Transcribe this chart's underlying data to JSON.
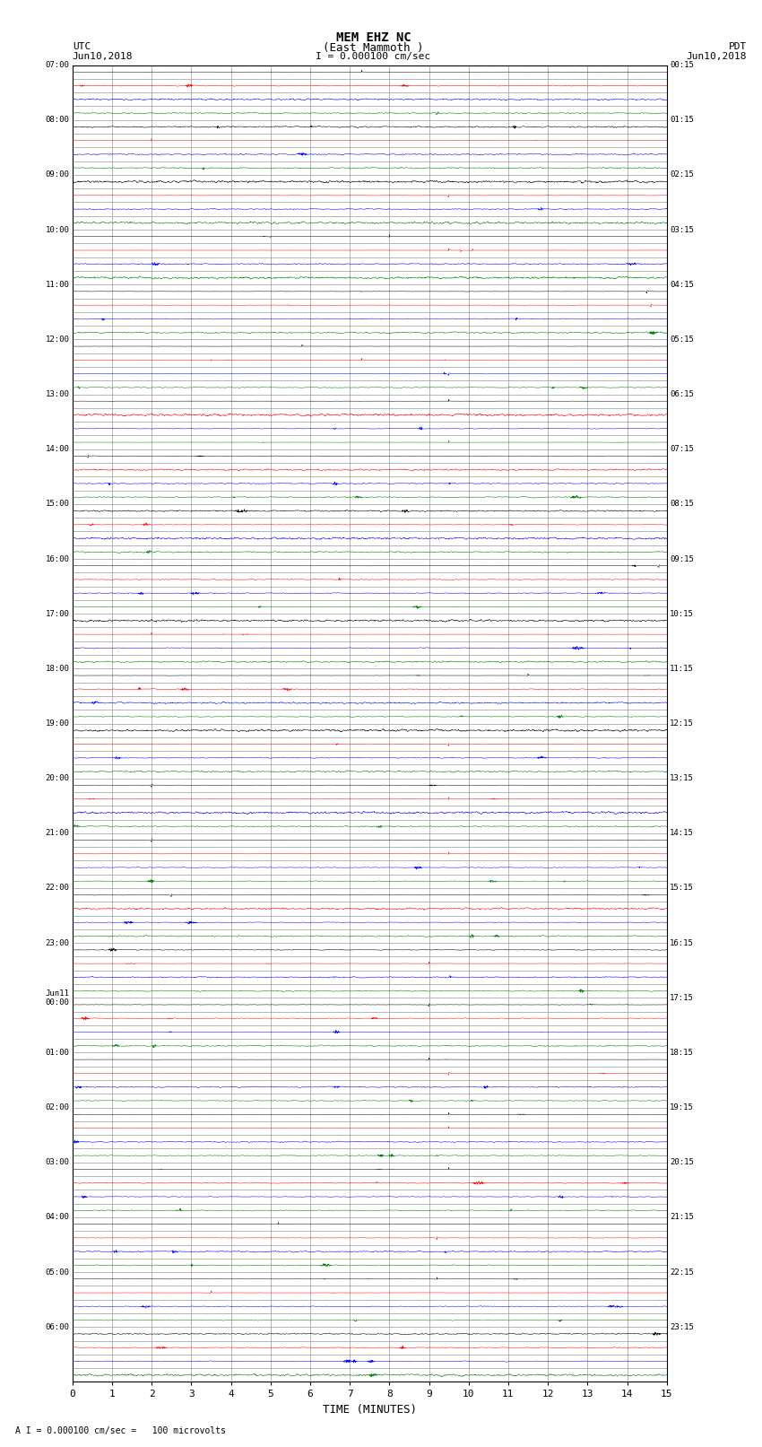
{
  "title_line1": "MEM EHZ NC",
  "title_line2": "(East Mammoth )",
  "scale_text": "I = 0.000100 cm/sec",
  "bottom_label": "TIME (MINUTES)",
  "bottom_note": "A I = 0.000100 cm/sec =   100 microvolts",
  "utc_label": "UTC",
  "utc_date": "Jun10,2018",
  "pdt_label": "PDT",
  "pdt_date": "Jun10,2018",
  "xlim": [
    0,
    15
  ],
  "xticks": [
    0,
    1,
    2,
    3,
    4,
    5,
    6,
    7,
    8,
    9,
    10,
    11,
    12,
    13,
    14,
    15
  ],
  "colors_cycle": [
    "black",
    "red",
    "blue",
    "green"
  ],
  "background_color": "white",
  "grid_color": "#999999",
  "trace_noise_std": 0.12,
  "rows": [
    {
      "utc": "07:00",
      "pdt": "00:15"
    },
    {
      "utc": "",
      "pdt": ""
    },
    {
      "utc": "",
      "pdt": ""
    },
    {
      "utc": "",
      "pdt": ""
    },
    {
      "utc": "08:00",
      "pdt": "01:15"
    },
    {
      "utc": "",
      "pdt": ""
    },
    {
      "utc": "",
      "pdt": ""
    },
    {
      "utc": "",
      "pdt": ""
    },
    {
      "utc": "09:00",
      "pdt": "02:15"
    },
    {
      "utc": "",
      "pdt": ""
    },
    {
      "utc": "",
      "pdt": ""
    },
    {
      "utc": "",
      "pdt": ""
    },
    {
      "utc": "10:00",
      "pdt": "03:15"
    },
    {
      "utc": "",
      "pdt": ""
    },
    {
      "utc": "",
      "pdt": ""
    },
    {
      "utc": "",
      "pdt": ""
    },
    {
      "utc": "11:00",
      "pdt": "04:15"
    },
    {
      "utc": "",
      "pdt": ""
    },
    {
      "utc": "",
      "pdt": ""
    },
    {
      "utc": "",
      "pdt": ""
    },
    {
      "utc": "12:00",
      "pdt": "05:15"
    },
    {
      "utc": "",
      "pdt": ""
    },
    {
      "utc": "",
      "pdt": ""
    },
    {
      "utc": "",
      "pdt": ""
    },
    {
      "utc": "13:00",
      "pdt": "06:15"
    },
    {
      "utc": "",
      "pdt": ""
    },
    {
      "utc": "",
      "pdt": ""
    },
    {
      "utc": "",
      "pdt": ""
    },
    {
      "utc": "14:00",
      "pdt": "07:15"
    },
    {
      "utc": "",
      "pdt": ""
    },
    {
      "utc": "",
      "pdt": ""
    },
    {
      "utc": "",
      "pdt": ""
    },
    {
      "utc": "15:00",
      "pdt": "08:15"
    },
    {
      "utc": "",
      "pdt": ""
    },
    {
      "utc": "",
      "pdt": ""
    },
    {
      "utc": "",
      "pdt": ""
    },
    {
      "utc": "16:00",
      "pdt": "09:15"
    },
    {
      "utc": "",
      "pdt": ""
    },
    {
      "utc": "",
      "pdt": ""
    },
    {
      "utc": "",
      "pdt": ""
    },
    {
      "utc": "17:00",
      "pdt": "10:15"
    },
    {
      "utc": "",
      "pdt": ""
    },
    {
      "utc": "",
      "pdt": ""
    },
    {
      "utc": "",
      "pdt": ""
    },
    {
      "utc": "18:00",
      "pdt": "11:15"
    },
    {
      "utc": "",
      "pdt": ""
    },
    {
      "utc": "",
      "pdt": ""
    },
    {
      "utc": "",
      "pdt": ""
    },
    {
      "utc": "19:00",
      "pdt": "12:15"
    },
    {
      "utc": "",
      "pdt": ""
    },
    {
      "utc": "",
      "pdt": ""
    },
    {
      "utc": "",
      "pdt": ""
    },
    {
      "utc": "20:00",
      "pdt": "13:15"
    },
    {
      "utc": "",
      "pdt": ""
    },
    {
      "utc": "",
      "pdt": ""
    },
    {
      "utc": "",
      "pdt": ""
    },
    {
      "utc": "21:00",
      "pdt": "14:15"
    },
    {
      "utc": "",
      "pdt": ""
    },
    {
      "utc": "",
      "pdt": ""
    },
    {
      "utc": "",
      "pdt": ""
    },
    {
      "utc": "22:00",
      "pdt": "15:15"
    },
    {
      "utc": "",
      "pdt": ""
    },
    {
      "utc": "",
      "pdt": ""
    },
    {
      "utc": "",
      "pdt": ""
    },
    {
      "utc": "23:00",
      "pdt": "16:15"
    },
    {
      "utc": "",
      "pdt": ""
    },
    {
      "utc": "",
      "pdt": ""
    },
    {
      "utc": "",
      "pdt": ""
    },
    {
      "utc": "Jun11\n00:00",
      "pdt": "17:15"
    },
    {
      "utc": "",
      "pdt": ""
    },
    {
      "utc": "",
      "pdt": ""
    },
    {
      "utc": "",
      "pdt": ""
    },
    {
      "utc": "01:00",
      "pdt": "18:15"
    },
    {
      "utc": "",
      "pdt": ""
    },
    {
      "utc": "",
      "pdt": ""
    },
    {
      "utc": "",
      "pdt": ""
    },
    {
      "utc": "02:00",
      "pdt": "19:15"
    },
    {
      "utc": "",
      "pdt": ""
    },
    {
      "utc": "",
      "pdt": ""
    },
    {
      "utc": "",
      "pdt": ""
    },
    {
      "utc": "03:00",
      "pdt": "20:15"
    },
    {
      "utc": "",
      "pdt": ""
    },
    {
      "utc": "",
      "pdt": ""
    },
    {
      "utc": "",
      "pdt": ""
    },
    {
      "utc": "04:00",
      "pdt": "21:15"
    },
    {
      "utc": "",
      "pdt": ""
    },
    {
      "utc": "",
      "pdt": ""
    },
    {
      "utc": "",
      "pdt": ""
    },
    {
      "utc": "05:00",
      "pdt": "22:15"
    },
    {
      "utc": "",
      "pdt": ""
    },
    {
      "utc": "",
      "pdt": ""
    },
    {
      "utc": "",
      "pdt": ""
    },
    {
      "utc": "06:00",
      "pdt": "23:15"
    },
    {
      "utc": "",
      "pdt": ""
    },
    {
      "utc": "",
      "pdt": ""
    },
    {
      "utc": "",
      "pdt": ""
    }
  ]
}
